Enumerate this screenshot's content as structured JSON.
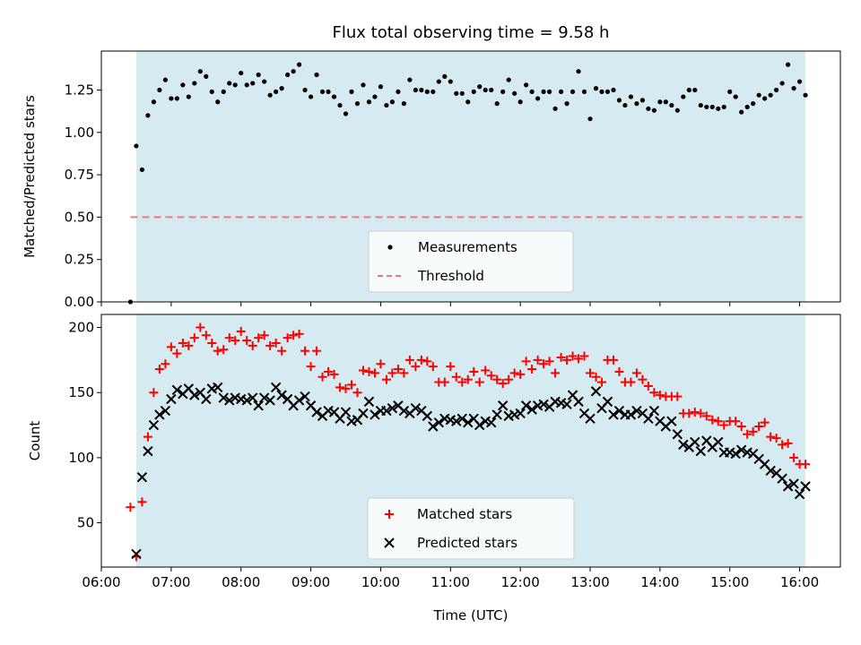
{
  "chart_data": [
    {
      "type": "scatter",
      "title": "Flux total observing time = 9.58 h",
      "xlabel": "",
      "ylabel": "Matched/Predicted stars",
      "xlim": [
        "06:00",
        "16:35"
      ],
      "ylim": [
        0,
        1.48
      ],
      "yticks": [
        0.0,
        0.25,
        0.5,
        0.75,
        1.0,
        1.25
      ],
      "ytick_labels": [
        "0.00",
        "0.25",
        "0.50",
        "0.75",
        "1.00",
        "1.25"
      ],
      "xtick_labels_shown": false,
      "grid": false,
      "observing_window": [
        "06:30",
        "16:05"
      ],
      "observing_window_color": "#d3eaf0",
      "legend": {
        "placement": "bottom-center",
        "entries": [
          {
            "label": "Measurements",
            "marker": "dot",
            "color": "#000000"
          },
          {
            "label": "Threshold",
            "marker": "dashed-line",
            "color": "#f07878"
          }
        ]
      },
      "threshold": {
        "name": "Threshold",
        "value": 0.5,
        "x_range": [
          "06:25",
          "16:05"
        ],
        "color": "#f07878"
      },
      "series": [
        {
          "name": "Measurements",
          "marker": "dot",
          "color": "#000000",
          "x": [
            "06:25",
            "06:30",
            "06:35",
            "06:40",
            "06:45",
            "06:50",
            "06:55",
            "07:00",
            "07:05",
            "07:10",
            "07:15",
            "07:20",
            "07:25",
            "07:30",
            "07:35",
            "07:40",
            "07:45",
            "07:50",
            "07:55",
            "08:00",
            "08:05",
            "08:10",
            "08:15",
            "08:20",
            "08:25",
            "08:30",
            "08:35",
            "08:40",
            "08:45",
            "08:50",
            "08:55",
            "09:00",
            "09:05",
            "09:10",
            "09:15",
            "09:20",
            "09:25",
            "09:30",
            "09:35",
            "09:40",
            "09:45",
            "09:50",
            "09:55",
            "10:00",
            "10:05",
            "10:10",
            "10:15",
            "10:20",
            "10:25",
            "10:30",
            "10:35",
            "10:40",
            "10:45",
            "10:50",
            "10:55",
            "11:00",
            "11:05",
            "11:10",
            "11:15",
            "11:20",
            "11:25",
            "11:30",
            "11:35",
            "11:40",
            "11:45",
            "11:50",
            "11:55",
            "12:00",
            "12:05",
            "12:10",
            "12:15",
            "12:20",
            "12:25",
            "12:30",
            "12:35",
            "12:40",
            "12:45",
            "12:50",
            "12:55",
            "13:00",
            "13:05",
            "13:10",
            "13:15",
            "13:20",
            "13:25",
            "13:30",
            "13:35",
            "13:40",
            "13:45",
            "13:50",
            "13:55",
            "14:00",
            "14:05",
            "14:10",
            "14:15",
            "14:20",
            "14:25",
            "14:30",
            "14:35",
            "14:40",
            "14:45",
            "14:50",
            "14:55",
            "15:00",
            "15:05",
            "15:10",
            "15:15",
            "15:20",
            "15:25",
            "15:30",
            "15:35",
            "15:40",
            "15:45",
            "15:50",
            "15:55",
            "16:00",
            "16:05"
          ],
          "y": [
            0.0,
            0.92,
            0.78,
            1.1,
            1.18,
            1.25,
            1.31,
            1.2,
            1.2,
            1.28,
            1.21,
            1.29,
            1.36,
            1.33,
            1.24,
            1.18,
            1.24,
            1.29,
            1.28,
            1.35,
            1.28,
            1.29,
            1.34,
            1.3,
            1.22,
            1.24,
            1.26,
            1.34,
            1.36,
            1.4,
            1.25,
            1.21,
            1.34,
            1.24,
            1.24,
            1.21,
            1.16,
            1.11,
            1.24,
            1.17,
            1.28,
            1.18,
            1.21,
            1.27,
            1.16,
            1.18,
            1.24,
            1.17,
            1.31,
            1.25,
            1.25,
            1.24,
            1.24,
            1.3,
            1.33,
            1.3,
            1.23,
            1.23,
            1.18,
            1.24,
            1.27,
            1.25,
            1.25,
            1.17,
            1.24,
            1.31,
            1.23,
            1.18,
            1.28,
            1.24,
            1.2,
            1.24,
            1.24,
            1.14,
            1.24,
            1.17,
            1.24,
            1.36,
            1.24,
            1.08,
            1.26,
            1.24,
            1.24,
            1.25,
            1.19,
            1.16,
            1.21,
            1.17,
            1.19,
            1.14,
            1.13,
            1.18,
            1.18,
            1.16,
            1.13,
            1.21,
            1.25,
            1.25,
            1.16,
            1.15,
            1.15,
            1.14,
            1.15,
            1.24,
            1.21,
            1.12,
            1.15,
            1.17,
            1.22,
            1.2,
            1.22,
            1.25,
            1.29,
            1.4,
            1.26,
            1.3,
            1.22
          ]
        }
      ]
    },
    {
      "type": "scatter",
      "title": "",
      "xlabel": "Time (UTC)",
      "ylabel": "Count",
      "xlim": [
        "06:00",
        "16:35"
      ],
      "ylim": [
        16,
        210
      ],
      "yticks": [
        50,
        100,
        150,
        200
      ],
      "ytick_labels": [
        "50",
        "100",
        "150",
        "200"
      ],
      "xticks": [
        "06:00",
        "07:00",
        "08:00",
        "09:00",
        "10:00",
        "11:00",
        "12:00",
        "13:00",
        "14:00",
        "15:00",
        "16:00"
      ],
      "xtick_labels": [
        "06:00",
        "07:00",
        "08:00",
        "09:00",
        "10:00",
        "11:00",
        "12:00",
        "13:00",
        "14:00",
        "15:00",
        "16:00"
      ],
      "grid": false,
      "observing_window": [
        "06:30",
        "16:05"
      ],
      "observing_window_color": "#d3eaf0",
      "legend": {
        "placement": "bottom-center",
        "entries": [
          {
            "label": "Matched stars",
            "marker": "plus",
            "color": "#ff0000"
          },
          {
            "label": "Predicted stars",
            "marker": "x",
            "color": "#000000"
          }
        ]
      },
      "series": [
        {
          "name": "Matched stars",
          "marker": "plus",
          "color": "#ff0000",
          "x": [
            "06:25",
            "06:30",
            "06:35",
            "06:40",
            "06:45",
            "06:50",
            "06:55",
            "07:00",
            "07:05",
            "07:10",
            "07:15",
            "07:20",
            "07:25",
            "07:30",
            "07:35",
            "07:40",
            "07:45",
            "07:50",
            "07:55",
            "08:00",
            "08:05",
            "08:10",
            "08:15",
            "08:20",
            "08:25",
            "08:30",
            "08:35",
            "08:40",
            "08:45",
            "08:50",
            "08:55",
            "09:00",
            "09:05",
            "09:10",
            "09:15",
            "09:20",
            "09:25",
            "09:30",
            "09:35",
            "09:40",
            "09:45",
            "09:50",
            "09:55",
            "10:00",
            "10:05",
            "10:10",
            "10:15",
            "10:20",
            "10:25",
            "10:30",
            "10:35",
            "10:40",
            "10:45",
            "10:50",
            "10:55",
            "11:00",
            "11:05",
            "11:10",
            "11:15",
            "11:20",
            "11:25",
            "11:30",
            "11:35",
            "11:40",
            "11:45",
            "11:50",
            "11:55",
            "12:00",
            "12:05",
            "12:10",
            "12:15",
            "12:20",
            "12:25",
            "12:30",
            "12:35",
            "12:40",
            "12:45",
            "12:50",
            "12:55",
            "13:00",
            "13:05",
            "13:10",
            "13:15",
            "13:20",
            "13:25",
            "13:30",
            "13:35",
            "13:40",
            "13:45",
            "13:50",
            "13:55",
            "14:00",
            "14:05",
            "14:10",
            "14:15",
            "14:20",
            "14:25",
            "14:30",
            "14:35",
            "14:40",
            "14:45",
            "14:50",
            "14:55",
            "15:00",
            "15:05",
            "15:10",
            "15:15",
            "15:20",
            "15:25",
            "15:30",
            "15:35",
            "15:40",
            "15:45",
            "15:50",
            "15:55",
            "16:00",
            "16:05"
          ],
          "y": [
            62,
            24,
            66,
            116,
            150,
            168,
            172,
            185,
            180,
            188,
            186,
            192,
            200,
            194,
            188,
            182,
            183,
            192,
            190,
            197,
            190,
            186,
            192,
            194,
            186,
            188,
            182,
            192,
            194,
            195,
            182,
            170,
            182,
            162,
            166,
            164,
            154,
            153,
            156,
            150,
            167,
            166,
            165,
            172,
            160,
            165,
            168,
            165,
            175,
            170,
            175,
            174,
            170,
            158,
            158,
            170,
            162,
            158,
            160,
            166,
            158,
            167,
            163,
            160,
            157,
            160,
            165,
            164,
            174,
            168,
            175,
            172,
            174,
            165,
            177,
            175,
            178,
            176,
            178,
            165,
            162,
            158,
            175,
            175,
            166,
            158,
            158,
            165,
            160,
            155,
            150,
            148,
            147,
            147,
            147,
            134,
            134,
            135,
            134,
            132,
            129,
            128,
            125,
            128,
            128,
            124,
            118,
            120,
            124,
            127,
            116,
            115,
            110,
            111,
            100,
            95,
            95
          ]
        },
        {
          "name": "Predicted stars",
          "marker": "x",
          "color": "#000000",
          "x": [
            "06:30",
            "06:35",
            "06:40",
            "06:45",
            "06:50",
            "06:55",
            "07:00",
            "07:05",
            "07:10",
            "07:15",
            "07:20",
            "07:25",
            "07:30",
            "07:35",
            "07:40",
            "07:45",
            "07:50",
            "07:55",
            "08:00",
            "08:05",
            "08:10",
            "08:15",
            "08:20",
            "08:25",
            "08:30",
            "08:35",
            "08:40",
            "08:45",
            "08:50",
            "08:55",
            "09:00",
            "09:05",
            "09:10",
            "09:15",
            "09:20",
            "09:25",
            "09:30",
            "09:35",
            "09:40",
            "09:45",
            "09:50",
            "09:55",
            "10:00",
            "10:05",
            "10:10",
            "10:15",
            "10:20",
            "10:25",
            "10:30",
            "10:35",
            "10:40",
            "10:45",
            "10:50",
            "10:55",
            "11:00",
            "11:05",
            "11:10",
            "11:15",
            "11:20",
            "11:25",
            "11:30",
            "11:35",
            "11:40",
            "11:45",
            "11:50",
            "11:55",
            "12:00",
            "12:05",
            "12:10",
            "12:15",
            "12:20",
            "12:25",
            "12:30",
            "12:35",
            "12:40",
            "12:45",
            "12:50",
            "12:55",
            "13:00",
            "13:05",
            "13:10",
            "13:15",
            "13:20",
            "13:25",
            "13:30",
            "13:35",
            "13:40",
            "13:45",
            "13:50",
            "13:55",
            "14:00",
            "14:05",
            "14:10",
            "14:15",
            "14:20",
            "14:25",
            "14:30",
            "14:35",
            "14:40",
            "14:45",
            "14:50",
            "14:55",
            "15:00",
            "15:05",
            "15:10",
            "15:15",
            "15:20",
            "15:25",
            "15:30",
            "15:35",
            "15:40",
            "15:45",
            "15:50",
            "15:55",
            "16:00",
            "16:05"
          ],
          "y": [
            26,
            85,
            105,
            125,
            133,
            136,
            145,
            152,
            149,
            153,
            148,
            150,
            145,
            153,
            154,
            146,
            144,
            146,
            145,
            144,
            146,
            140,
            146,
            144,
            154,
            148,
            145,
            140,
            144,
            147,
            140,
            135,
            132,
            136,
            135,
            130,
            135,
            128,
            129,
            134,
            143,
            133,
            136,
            136,
            138,
            140,
            136,
            134,
            138,
            136,
            132,
            124,
            127,
            130,
            129,
            128,
            130,
            127,
            130,
            125,
            128,
            127,
            133,
            140,
            132,
            133,
            134,
            140,
            137,
            140,
            141,
            139,
            143,
            142,
            141,
            148,
            143,
            134,
            130,
            151,
            138,
            143,
            133,
            136,
            133,
            133,
            136,
            134,
            130,
            136,
            128,
            124,
            128,
            118,
            110,
            108,
            112,
            105,
            113,
            108,
            112,
            104,
            104,
            103,
            106,
            104,
            103,
            99,
            95,
            90,
            88,
            84,
            78,
            80,
            72,
            78
          ]
        }
      ]
    }
  ]
}
